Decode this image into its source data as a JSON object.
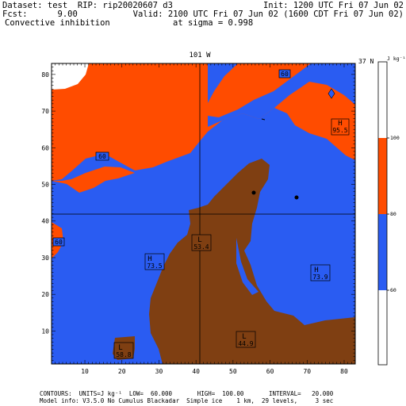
{
  "header": {
    "dataset": "Dataset: test  RIP: rip20020607 d3",
    "init": "Init: 1200 UTC Fri 07 Jun 02",
    "fcst": "Fcst:      9.00",
    "valid": "Valid: 2100 UTC Fri 07 Jun 02 (1600 CDT Fri 07 Jun 02)",
    "field": "Convective inhibition",
    "sigma": "at sigma = 0.998"
  },
  "map": {
    "top_label": "101 W",
    "right_label": "37 N",
    "x_ticks": [
      "10",
      "20",
      "30",
      "40",
      "50",
      "60",
      "70",
      "80"
    ],
    "y_ticks": [
      "10",
      "20",
      "30",
      "40",
      "50",
      "60",
      "70",
      "80"
    ],
    "colors": {
      "low": "#7f3f12",
      "mid": "#2a5cf2",
      "high": "#ff4c00",
      "none": "#ffffff"
    },
    "contour_labels": [
      "60",
      "60",
      "60"
    ],
    "highs": [
      {
        "mark": "H",
        "value": "95.5"
      },
      {
        "mark": "H",
        "value": "73.5"
      },
      {
        "mark": "H",
        "value": "73.9"
      }
    ],
    "lows": [
      {
        "mark": "L",
        "value": "53.4"
      },
      {
        "mark": "L",
        "value": "44.9"
      },
      {
        "mark": "L",
        "value": "58.8"
      }
    ]
  },
  "colorbar": {
    "units": "J kg⁻¹",
    "ticks": [
      "100",
      "80",
      "60"
    ],
    "bands": [
      {
        "color": "#ffffff",
        "range": "above 100"
      },
      {
        "color": "#ff4c00",
        "range": "80-100"
      },
      {
        "color": "#2a5cf2",
        "range": "60-80"
      },
      {
        "color": "#ffffff",
        "range": "below 60"
      }
    ]
  },
  "footer": {
    "line1": "CONTOURS:  UNITS=J kg⁻¹  LOW=  60.000       HIGH=  100.00       INTERVAL=   20.000",
    "line2": "Model info: V3.5.0 No Cumulus Blackadar  Simple ice    1 km,  29 levels,     3 sec"
  }
}
